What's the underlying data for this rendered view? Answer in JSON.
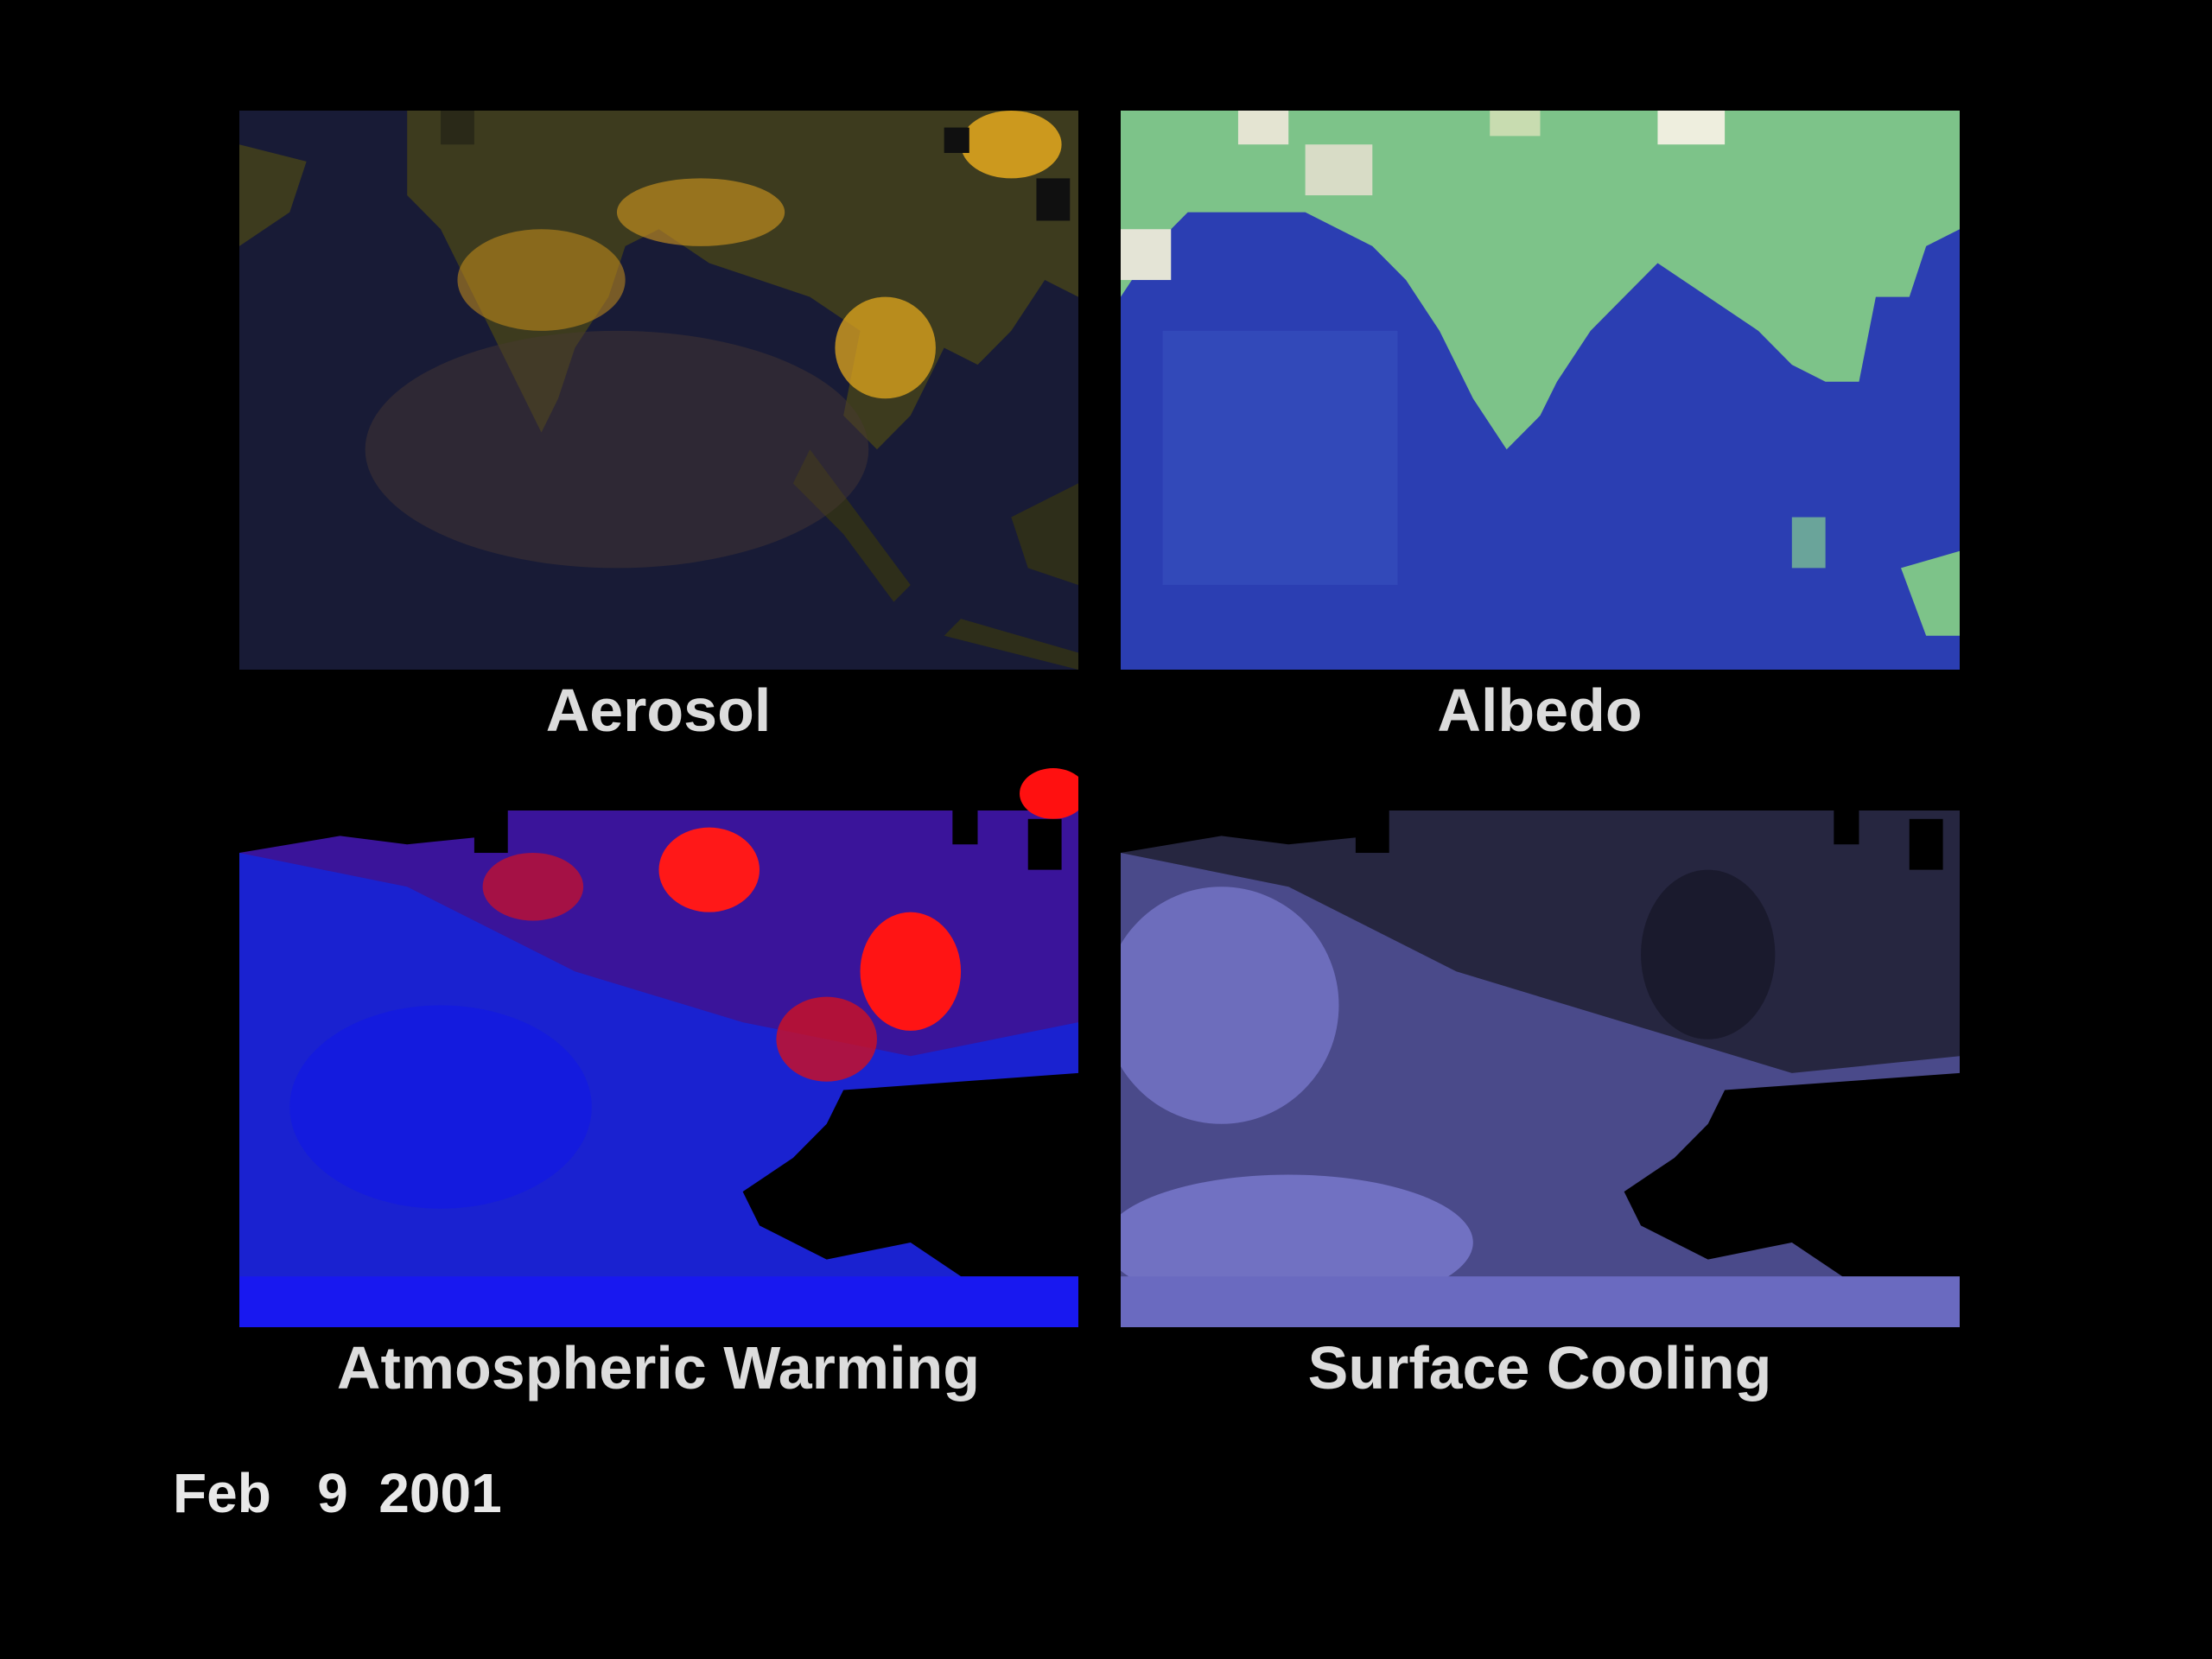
{
  "panels": [
    {
      "id": "aerosol",
      "label": "Aerosol",
      "colors": {
        "ocean": "#1a1d3a",
        "land": "#3a3a1c",
        "high": "#e6a21c",
        "mid": "#8a6a2a"
      }
    },
    {
      "id": "albedo",
      "label": "Albedo",
      "colors": {
        "ocean": "#2a3fb0",
        "land": "#7fc488",
        "high": "#e2e2cf",
        "mid": "#3b5fc4"
      }
    },
    {
      "id": "warming",
      "label": "Atmospheric Warming",
      "colors": {
        "ocean": "#1522d8",
        "land": "#3a1090",
        "high": "#ff1010",
        "mid": "#2a18b0",
        "missing": "#000000"
      }
    },
    {
      "id": "cooling",
      "label": "Surface Cooling",
      "colors": {
        "ocean": "#5a5aa8",
        "land": "#262640",
        "high": "#8080d0",
        "mid": "#3c3c6c",
        "missing": "#000000"
      }
    }
  ],
  "date": "Feb   9  2001"
}
